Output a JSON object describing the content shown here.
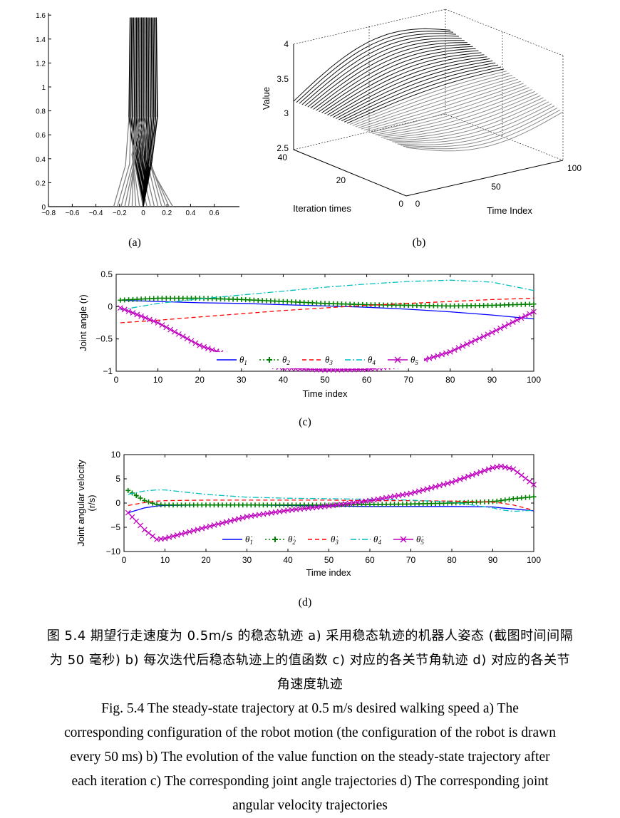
{
  "figure": {
    "panel_a": {
      "label": "(a)",
      "x_ticks": [
        "−0.8",
        "−0.6",
        "−0.4",
        "−0.2",
        "0",
        "0.2",
        "0.4",
        "0.6"
      ],
      "y_ticks": [
        "0",
        "0.2",
        "0.4",
        "0.6",
        "0.8",
        "1",
        "1.2",
        "1.4",
        "1.6"
      ]
    },
    "panel_b": {
      "label": "(b)",
      "z_label": "Value",
      "x_label": "Iteration times",
      "y_label": "Time Index",
      "z_ticks": [
        "2.5",
        "3",
        "3.5",
        "4"
      ],
      "iter_ticks": [
        "0",
        "20",
        "40"
      ],
      "time_ticks": [
        "0",
        "50",
        "100"
      ]
    },
    "panel_c": {
      "label": "(c)",
      "xlabel": "Time index",
      "ylabel": "Joint angle (r)",
      "legend": [
        "θ",
        "θ",
        "θ",
        "θ",
        "θ"
      ],
      "legend_subs": [
        "1",
        "2",
        "3",
        "4",
        "5"
      ],
      "x_ticks": [
        "0",
        "10",
        "20",
        "30",
        "40",
        "50",
        "60",
        "70",
        "80",
        "90",
        "100"
      ],
      "y_ticks": [
        "0.5",
        "0",
        "−0.5",
        "−1"
      ]
    },
    "panel_d": {
      "label": "(d)",
      "xlabel": "Time index",
      "ylabel_line1": "Joint angular velocity",
      "ylabel_line2": "(r/s)",
      "legend": [
        "θ̇",
        "θ̇",
        "θ̇",
        "θ̇",
        "θ̇"
      ],
      "legend_subs": [
        "1",
        "2",
        "3",
        "4",
        "5"
      ],
      "x_ticks": [
        "0",
        "10",
        "20",
        "30",
        "40",
        "50",
        "60",
        "70",
        "80",
        "90",
        "100"
      ],
      "y_ticks": [
        "10",
        "5",
        "0",
        "−5",
        "−10"
      ]
    },
    "colors": {
      "theta1": "#0000ff",
      "theta2": "#008000",
      "theta3": "#ff0000",
      "theta4": "#00bfbf",
      "theta5": "#bf00bf"
    }
  },
  "chart_data": [
    {
      "type": "line",
      "panel": "c",
      "xlabel": "Time index",
      "ylabel": "Joint angle (r)",
      "xlim": [
        0,
        100
      ],
      "ylim": [
        -1,
        0.5
      ],
      "x": [
        1,
        10,
        20,
        30,
        40,
        50,
        60,
        70,
        80,
        90,
        100
      ],
      "series": [
        {
          "name": "θ1",
          "values": [
            0.1,
            0.08,
            0.06,
            0.05,
            0.03,
            0.01,
            -0.01,
            -0.04,
            -0.08,
            -0.13,
            -0.19
          ]
        },
        {
          "name": "θ2",
          "values": [
            0.1,
            0.13,
            0.13,
            0.11,
            0.08,
            0.05,
            0.03,
            0.02,
            0.01,
            0.02,
            0.04
          ]
        },
        {
          "name": "θ3",
          "values": [
            -0.25,
            -0.21,
            -0.16,
            -0.11,
            -0.06,
            -0.02,
            0.02,
            0.05,
            0.08,
            0.11,
            0.13
          ]
        },
        {
          "name": "θ4",
          "values": [
            -0.05,
            0.05,
            0.12,
            0.18,
            0.24,
            0.3,
            0.35,
            0.39,
            0.41,
            0.38,
            0.25
          ]
        },
        {
          "name": "θ5",
          "values": [
            -0.02,
            -0.25,
            -0.6,
            -0.83,
            -0.95,
            -0.98,
            -0.97,
            -0.9,
            -0.7,
            -0.4,
            -0.08
          ]
        }
      ]
    },
    {
      "type": "line",
      "panel": "d",
      "xlabel": "Time index",
      "ylabel": "Joint angular velocity (r/s)",
      "xlim": [
        0,
        100
      ],
      "ylim": [
        -10,
        10
      ],
      "x": [
        1,
        5,
        8,
        10,
        20,
        30,
        40,
        50,
        60,
        70,
        80,
        90,
        92,
        95,
        100
      ],
      "series": [
        {
          "name": "θ̇1",
          "values": [
            -2.0,
            -1.0,
            -0.6,
            -0.5,
            -0.4,
            -0.4,
            -0.5,
            -0.6,
            -0.7,
            -0.7,
            -0.7,
            -0.8,
            -1.0,
            -1.2,
            -1.6
          ]
        },
        {
          "name": "θ̇2",
          "values": [
            2.6,
            0.5,
            -0.3,
            -0.4,
            -0.4,
            -0.4,
            -0.4,
            -0.4,
            -0.3,
            -0.2,
            0.0,
            0.3,
            0.5,
            0.9,
            1.3
          ]
        },
        {
          "name": "θ̇3",
          "values": [
            -0.5,
            0.1,
            0.4,
            0.5,
            0.6,
            0.6,
            0.6,
            0.6,
            0.5,
            0.5,
            0.4,
            0.2,
            0.0,
            -0.4,
            -1.5
          ]
        },
        {
          "name": "θ̇4",
          "values": [
            1.8,
            2.5,
            2.7,
            2.7,
            1.8,
            1.2,
            1.0,
            0.9,
            0.8,
            0.6,
            0.2,
            -1.0,
            -1.4,
            -1.7,
            -1.5
          ]
        },
        {
          "name": "θ̇5",
          "values": [
            -2.0,
            -5.5,
            -7.5,
            -7.3,
            -5.0,
            -2.8,
            -1.5,
            -0.6,
            0.5,
            2.0,
            4.3,
            7.3,
            7.6,
            7.0,
            3.8
          ]
        }
      ]
    }
  ],
  "caption": {
    "zh_line1": "图 5.4 期望行走速度为 0.5m/s 的稳态轨迹 a) 采用稳态轨迹的机器人姿态 (截图时间间隔",
    "zh_line2": "为 50 毫秒) b) 每次迭代后稳态轨迹上的值函数 c) 对应的各关节角轨迹 d) 对应的各关节",
    "zh_line3": "角速度轨迹",
    "en_line1": "Fig. 5.4 The steady-state trajectory at 0.5 m/s desired walking speed a) The",
    "en_line2": "corresponding configuration of the robot motion (the configuration of the robot is drawn",
    "en_line3": "every 50 ms) b) The evolution of the value function on the steady-state trajectory after",
    "en_line4": "each iteration c) The corresponding joint angle trajectories d) The corresponding joint",
    "en_line5": "angular velocity trajectories"
  }
}
